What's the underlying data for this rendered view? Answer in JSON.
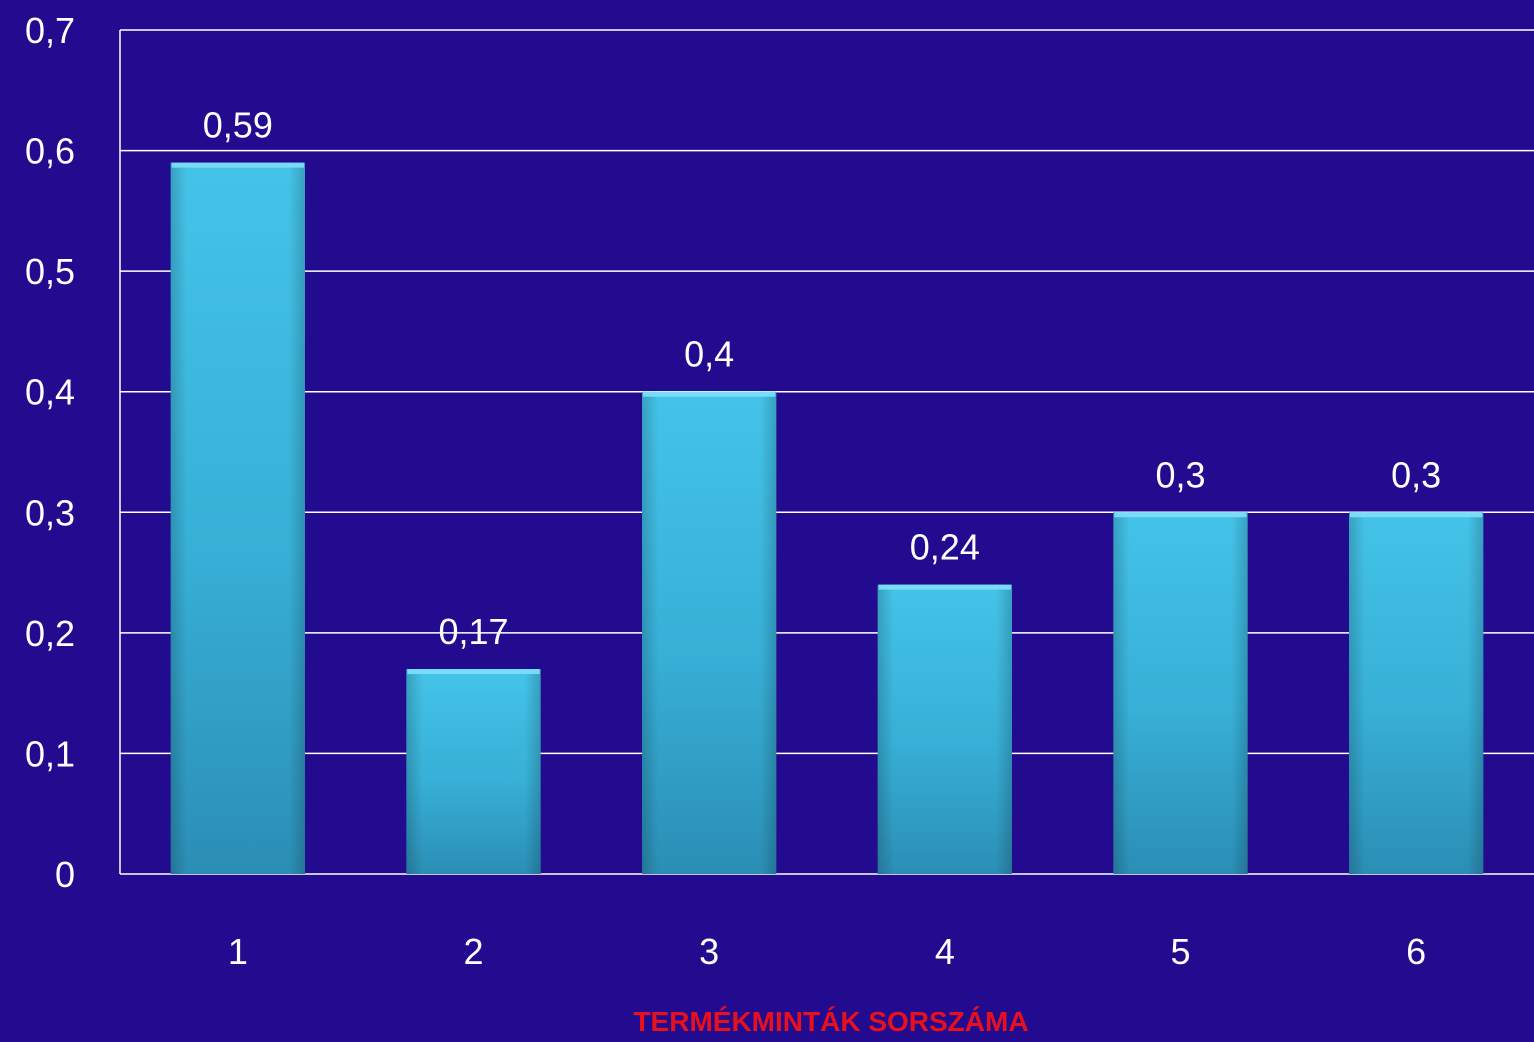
{
  "chart_data": {
    "type": "bar",
    "categories": [
      "1",
      "2",
      "3",
      "4",
      "5",
      "6"
    ],
    "values": [
      0.59,
      0.17,
      0.4,
      0.24,
      0.3,
      0.3
    ],
    "value_labels": [
      "0,59",
      "0,17",
      "0,4",
      "0,24",
      "0,3",
      "0,3"
    ],
    "y_ticks": [
      0,
      0.1,
      0.2,
      0.3,
      0.4,
      0.5,
      0.6,
      0.7
    ],
    "y_tick_labels": [
      "0",
      "0,1",
      "0,2",
      "0,3",
      "0,4",
      "0,5",
      "0,6",
      "0,7"
    ],
    "ylim": [
      0,
      0.7
    ],
    "title": "",
    "xlabel": "TERMÉKMINTÁK SORSZÁMA",
    "ylabel": "",
    "grid": true,
    "legend": "none"
  },
  "colors": {
    "background": "#230b8f",
    "bar_light": "#44c3e8",
    "bar_mid": "#37afd6",
    "bar_dark": "#2b8eb5",
    "bar_top": "#7fe0f8",
    "grid": "#ffffff",
    "text": "#ffffff",
    "xlabel": "#e8101c"
  }
}
